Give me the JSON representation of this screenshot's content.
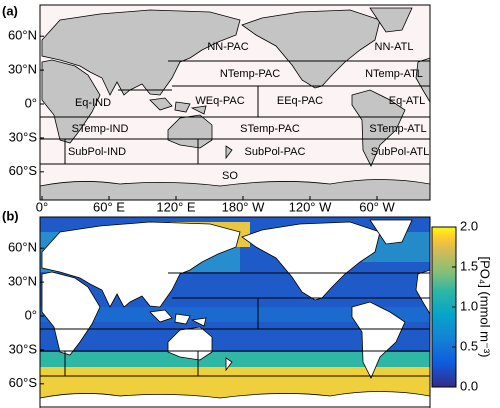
{
  "panel_a": {
    "label": "(a)",
    "lat_ticks": [
      {
        "value": 60,
        "label": "60°N"
      },
      {
        "value": 30,
        "label": "30°N"
      },
      {
        "value": 0,
        "label": "0°"
      },
      {
        "value": -30,
        "label": "30°S"
      },
      {
        "value": -60,
        "label": "60°S"
      }
    ],
    "lon_ticks": [
      {
        "value": 0,
        "label": "0°"
      },
      {
        "value": 60,
        "label": "60° E"
      },
      {
        "value": 120,
        "label": "120° E"
      },
      {
        "value": 180,
        "label": "180° W"
      },
      {
        "value": 240,
        "label": "120° W"
      },
      {
        "value": 300,
        "label": "60° W"
      }
    ],
    "regions": [
      "NN-PAC",
      "NN-ATL",
      "NTemp-PAC",
      "NTemp-ATL",
      "Eq-IND",
      "WEq-PAC",
      "EEq-PAC",
      "Eq-ATL",
      "STemp-IND",
      "STemp-PAC",
      "STemp-ATL",
      "SubPol-IND",
      "SubPol-PAC",
      "SubPol-ATL",
      "SO"
    ]
  },
  "panel_b": {
    "label": "(b)",
    "lat_ticks": [
      {
        "value": 60,
        "label": "60°N"
      },
      {
        "value": 30,
        "label": "30°N"
      },
      {
        "value": 0,
        "label": "0°"
      },
      {
        "value": -30,
        "label": "30°S"
      },
      {
        "value": -60,
        "label": "60°S"
      }
    ],
    "colorbar": {
      "label": "[PO₄] (mmol m⁻³)",
      "lim": [
        0,
        2
      ],
      "ticks": [
        {
          "value": 0,
          "label": "0.0"
        },
        {
          "value": 0.5,
          "label": "0.5"
        },
        {
          "value": 1,
          "label": "1.0"
        },
        {
          "value": 1.5,
          "label": "1.5"
        },
        {
          "value": 2,
          "label": "2.0"
        }
      ]
    }
  }
}
